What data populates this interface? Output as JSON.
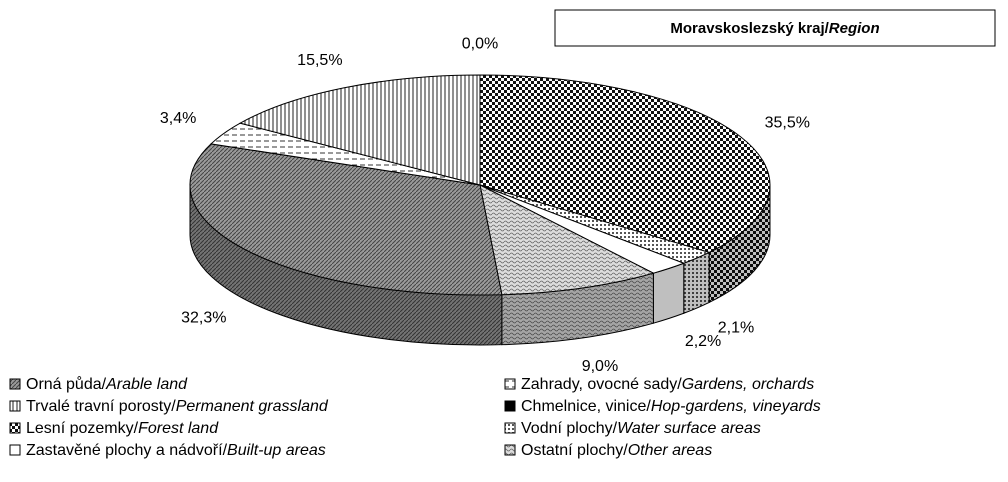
{
  "chart_data": {
    "type": "pie3d",
    "title": "Moravskoslezský kraj/Region",
    "categories": [
      "Orná půda/Arable land",
      "Trvalé travní porosty/Permanent grassland",
      "Lesní pozemky/Forest land",
      "Zastavěné plochy a nádvoří/Built-up areas",
      "Zahrady, ovocné sady/Gardens, orchards",
      "Chmelnice, vinice/Hop-gardens, vineyards",
      "Vodní plochy/Water surface areas",
      "Ostatní plochy/Other areas"
    ],
    "values": [
      32.3,
      15.5,
      35.5,
      2.2,
      3.4,
      0.0,
      2.1,
      9.0
    ],
    "value_labels": [
      "32,3%",
      "15,5%",
      "35,5%",
      "2,2%",
      "3,4%",
      "0,0%",
      "2,1%",
      "9,0%"
    ]
  }
}
